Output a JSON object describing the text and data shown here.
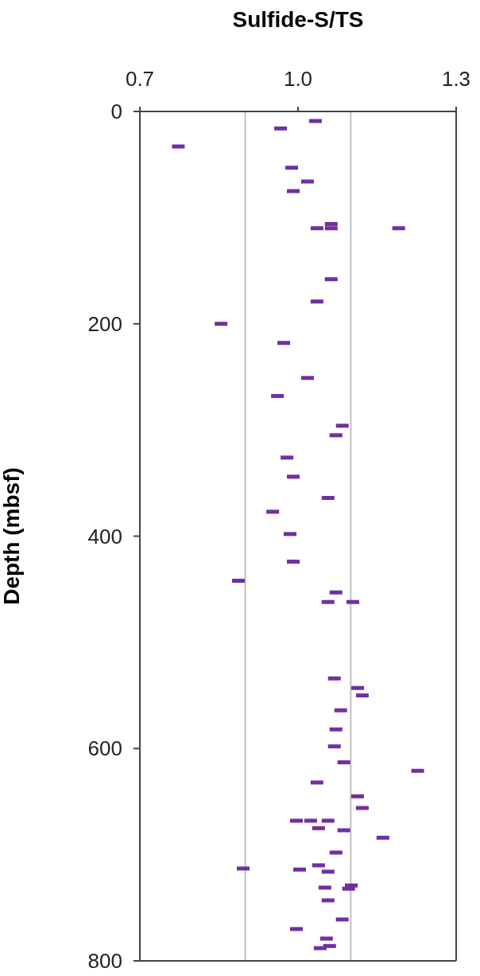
{
  "chart_data": {
    "type": "scatter",
    "xlabel": "Sulfide-S/TS",
    "ylabel": "Depth (mbsf)",
    "xlim": [
      0.7,
      1.3
    ],
    "xticks": [
      0.7,
      {
        "value": 1.0,
        "label": "1.0"
      },
      1.3
    ],
    "ylim": [
      800,
      0
    ],
    "yticks": [
      0,
      200,
      400,
      600,
      800
    ],
    "grid": false,
    "legend": false,
    "marker": "square",
    "ref_lines": [
      {
        "axis": "x",
        "value": 0.9,
        "color": "#c0c0c0"
      },
      {
        "axis": "x",
        "value": 1.1,
        "color": "#c0c0c0"
      }
    ],
    "series": [
      {
        "color": "#7030a0",
        "x": [
          1.033,
          0.967,
          0.773,
          0.988,
          1.018,
          0.991,
          1.063,
          1.036,
          1.063,
          1.191,
          1.063,
          1.036,
          0.854,
          0.973,
          1.018,
          0.961,
          1.084,
          1.072,
          0.979,
          0.991,
          1.057,
          0.952,
          0.985,
          0.991,
          0.887,
          1.072,
          1.057,
          1.104,
          1.069,
          1.113,
          1.122,
          1.081,
          1.072,
          1.069,
          1.087,
          1.227,
          1.036,
          1.113,
          1.122,
          0.997,
          1.024,
          1.057,
          1.039,
          1.087,
          1.161,
          1.072,
          0.896,
          1.039,
          1.003,
          1.057,
          1.051,
          1.101,
          1.096,
          1.057,
          1.084,
          0.997,
          1.054,
          1.06,
          1.042
        ],
        "values": [
          9,
          16,
          33,
          53,
          66,
          75,
          106,
          110,
          110,
          110,
          158,
          179,
          200,
          218,
          251,
          268,
          296,
          305,
          326,
          344,
          364,
          377,
          398,
          424,
          442,
          453,
          462,
          462,
          534,
          543,
          550,
          564,
          582,
          598,
          613,
          621,
          632,
          645,
          656,
          668,
          668,
          668,
          675,
          677,
          684,
          698,
          713,
          710,
          714,
          716,
          731,
          729,
          732,
          743,
          761,
          770,
          779,
          786,
          788
        ]
      }
    ]
  }
}
